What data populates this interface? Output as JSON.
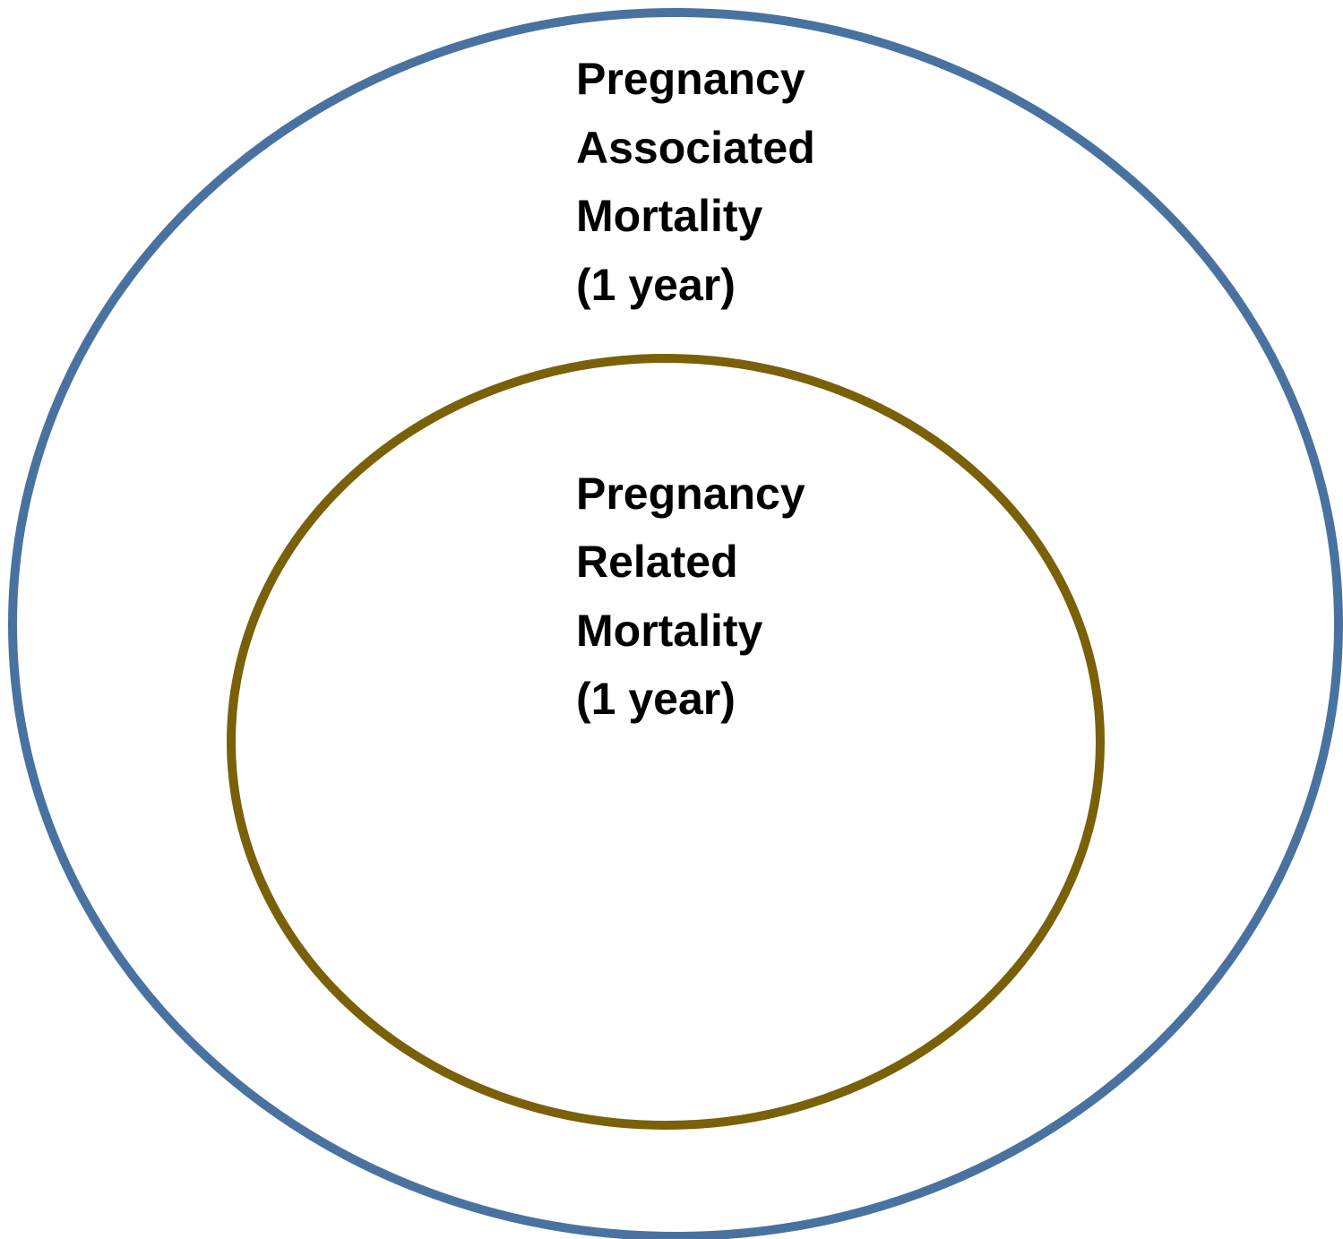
{
  "nodes": [
    {
      "label_lines": [
        "Pregnancy",
        "Associated",
        "Mortality",
        "(1 year)"
      ]
    },
    {
      "label_lines": [
        "Pregnancy",
        "Related",
        "Mortality",
        "(1 year)"
      ]
    }
  ]
}
